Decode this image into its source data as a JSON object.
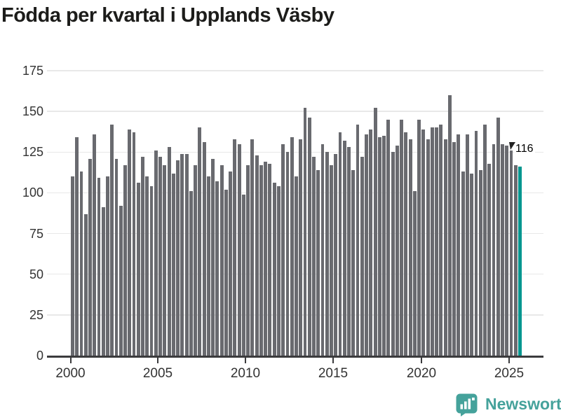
{
  "chart_data": {
    "type": "bar",
    "title": "Födda per kvartal i Upplands Väsby",
    "xlabel": "",
    "ylabel": "",
    "ylim": [
      0,
      175
    ],
    "y_ticks": [
      0,
      25,
      50,
      75,
      100,
      125,
      150,
      175
    ],
    "x_tick_labels": [
      "2000",
      "2005",
      "2010",
      "2015",
      "2020",
      "2025"
    ],
    "grid": "horizontal-light",
    "legend": "none",
    "bar_color": "#696a6f",
    "highlight_color": "#00968f",
    "highlight_index": 102,
    "highlight_label": "116",
    "categories": [
      "2000Q1",
      "2000Q2",
      "2000Q3",
      "2000Q4",
      "2001Q1",
      "2001Q2",
      "2001Q3",
      "2001Q4",
      "2002Q1",
      "2002Q2",
      "2002Q3",
      "2002Q4",
      "2003Q1",
      "2003Q2",
      "2003Q3",
      "2003Q4",
      "2004Q1",
      "2004Q2",
      "2004Q3",
      "2004Q4",
      "2005Q1",
      "2005Q2",
      "2005Q3",
      "2005Q4",
      "2006Q1",
      "2006Q2",
      "2006Q3",
      "2006Q4",
      "2007Q1",
      "2007Q2",
      "2007Q3",
      "2007Q4",
      "2008Q1",
      "2008Q2",
      "2008Q3",
      "2008Q4",
      "2009Q1",
      "2009Q2",
      "2009Q3",
      "2009Q4",
      "2010Q1",
      "2010Q2",
      "2010Q3",
      "2010Q4",
      "2011Q1",
      "2011Q2",
      "2011Q3",
      "2011Q4",
      "2012Q1",
      "2012Q2",
      "2012Q3",
      "2012Q4",
      "2013Q1",
      "2013Q2",
      "2013Q3",
      "2013Q4",
      "2014Q1",
      "2014Q2",
      "2014Q3",
      "2014Q4",
      "2015Q1",
      "2015Q2",
      "2015Q3",
      "2015Q4",
      "2016Q1",
      "2016Q2",
      "2016Q3",
      "2016Q4",
      "2017Q1",
      "2017Q2",
      "2017Q3",
      "2017Q4",
      "2018Q1",
      "2018Q2",
      "2018Q3",
      "2018Q4",
      "2019Q1",
      "2019Q2",
      "2019Q3",
      "2019Q4",
      "2020Q1",
      "2020Q2",
      "2020Q3",
      "2020Q4",
      "2021Q1",
      "2021Q2",
      "2021Q3",
      "2021Q4",
      "2022Q1",
      "2022Q2",
      "2022Q3",
      "2022Q4",
      "2023Q1",
      "2023Q2",
      "2023Q3",
      "2023Q4",
      "2024Q1",
      "2024Q2",
      "2024Q3",
      "2024Q4",
      "2025Q1",
      "2025Q2",
      "2025Q3"
    ],
    "values": [
      110,
      134,
      113,
      87,
      121,
      136,
      109,
      91,
      110,
      142,
      121,
      92,
      117,
      139,
      137,
      106,
      122,
      110,
      104,
      126,
      122,
      117,
      128,
      112,
      120,
      124,
      124,
      101,
      117,
      140,
      131,
      110,
      121,
      107,
      117,
      102,
      113,
      133,
      130,
      99,
      117,
      133,
      123,
      117,
      119,
      118,
      106,
      104,
      130,
      125,
      134,
      110,
      133,
      152,
      146,
      122,
      114,
      130,
      125,
      117,
      124,
      137,
      132,
      128,
      114,
      142,
      122,
      136,
      139,
      152,
      134,
      135,
      145,
      125,
      129,
      145,
      137,
      133,
      101,
      145,
      139,
      133,
      140,
      140,
      142,
      133,
      160,
      131,
      136,
      113,
      136,
      112,
      138,
      114,
      142,
      118,
      130,
      146,
      130,
      129,
      126,
      117,
      116
    ]
  },
  "branding": {
    "name": "Newsworthy",
    "color": "#45a29b"
  },
  "colors": {
    "background": "#ffffff",
    "axis": "#3b3b3d",
    "gridline": "#e8e8e8",
    "tick_text": "#333333",
    "title_text": "#1c1c1a",
    "annotation_text": "#000000"
  }
}
